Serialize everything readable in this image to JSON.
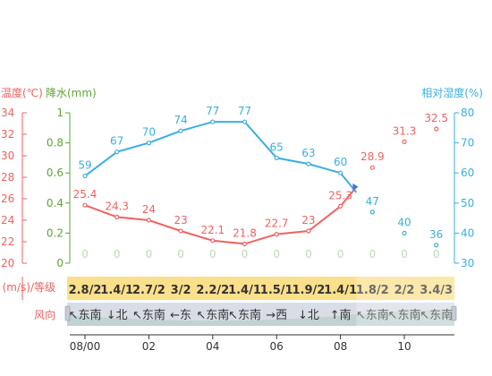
{
  "chart_data": {
    "type": "line",
    "x_ticks": [
      "08/00",
      "02",
      "04",
      "06",
      "08",
      "10"
    ],
    "left_axis_temp": {
      "label": "温度(℃)",
      "ticks": [
        "34",
        "32",
        "30",
        "28",
        "26",
        "24",
        "22",
        "20"
      ],
      "ylim": [
        20,
        34
      ],
      "color": "#f0625f"
    },
    "left_axis_rain": {
      "label": "降水(mm)",
      "ticks": [
        "1",
        "0.8",
        "0.6",
        "0.4",
        "0.2",
        "0"
      ],
      "ylim": [
        0,
        1
      ],
      "color": "#5ea534"
    },
    "right_axis_humidity": {
      "label": "相对湿度(%)",
      "ticks": [
        "80",
        "70",
        "60",
        "50",
        "40",
        "30"
      ],
      "ylim": [
        30,
        80
      ],
      "color": "#3aaedf"
    },
    "series": [
      {
        "name": "温度",
        "color": "#f0625f",
        "values": [
          25.4,
          24.3,
          24,
          23,
          22.1,
          21.8,
          22.7,
          23,
          25.3,
          28.9,
          31.3,
          32.5
        ],
        "labels": [
          "25.4",
          "24.3",
          "24",
          "23",
          "22.1",
          "21.8",
          "22.7",
          "23",
          "25.3",
          "28.9",
          "31.3",
          "32.5"
        ]
      },
      {
        "name": "相对湿度",
        "color": "#3aaedf",
        "values": [
          59,
          67,
          70,
          74,
          77,
          77,
          65,
          63,
          60,
          47,
          40,
          36
        ],
        "labels": [
          "59",
          "67",
          "70",
          "74",
          "77",
          "77",
          "65",
          "63",
          "60",
          "47",
          "40",
          "36"
        ]
      },
      {
        "name": "降水",
        "color": "#5ea534",
        "values": [
          0,
          0,
          0,
          0,
          0,
          0,
          0,
          0,
          0,
          0,
          0,
          0
        ],
        "labels": [
          "0",
          "0",
          "0",
          "0",
          "0",
          "0",
          "0",
          "0",
          "0",
          "0",
          "0",
          "0"
        ]
      }
    ],
    "wind_speed_label": "(m/s)/等级",
    "wind_speed": [
      "2.8/2",
      "1.4/1",
      "2.7/2",
      "3/2",
      "2.2/2",
      "1.4/1",
      "1.5/1",
      "1.9/2",
      "1.4/1",
      "1.8/2",
      "2/2",
      "3.4/3"
    ],
    "wind_dir_label": "风向",
    "wind_dir": [
      "↖东南",
      "↓北",
      "↖东南",
      "←东",
      "↖东南",
      "↖东南",
      "→西",
      "↓北",
      "↑南",
      "↖东南",
      "↖东南",
      "↖东南"
    ]
  }
}
